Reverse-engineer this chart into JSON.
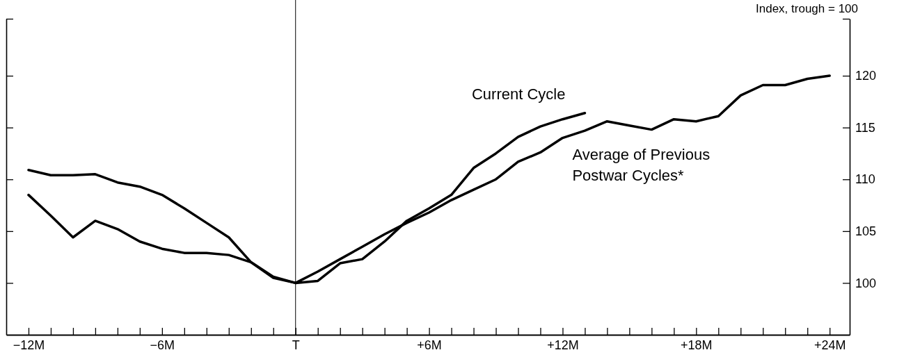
{
  "chart_data": {
    "type": "line",
    "ylabel": "Index, trough = 100",
    "xlim": [
      -13,
      24.9
    ],
    "ylim": [
      95,
      125.5
    ],
    "xticks": [
      {
        "value": -12,
        "label": "−12M"
      },
      {
        "value": -11,
        "label": null
      },
      {
        "value": -10,
        "label": null
      },
      {
        "value": -9,
        "label": null
      },
      {
        "value": -8,
        "label": null
      },
      {
        "value": -7,
        "label": null
      },
      {
        "value": -6,
        "label": "−6M"
      },
      {
        "value": -5,
        "label": null
      },
      {
        "value": -4,
        "label": null
      },
      {
        "value": -3,
        "label": null
      },
      {
        "value": -2,
        "label": null
      },
      {
        "value": -1,
        "label": null
      },
      {
        "value": 0,
        "label": "T"
      },
      {
        "value": 1,
        "label": null
      },
      {
        "value": 2,
        "label": null
      },
      {
        "value": 3,
        "label": null
      },
      {
        "value": 4,
        "label": null
      },
      {
        "value": 5,
        "label": null
      },
      {
        "value": 6,
        "label": "+6M"
      },
      {
        "value": 7,
        "label": null
      },
      {
        "value": 8,
        "label": null
      },
      {
        "value": 9,
        "label": null
      },
      {
        "value": 10,
        "label": null
      },
      {
        "value": 11,
        "label": null
      },
      {
        "value": 12,
        "label": "+12M"
      },
      {
        "value": 13,
        "label": null
      },
      {
        "value": 14,
        "label": null
      },
      {
        "value": 15,
        "label": null
      },
      {
        "value": 16,
        "label": null
      },
      {
        "value": 17,
        "label": null
      },
      {
        "value": 18,
        "label": "+18M"
      },
      {
        "value": 19,
        "label": null
      },
      {
        "value": 20,
        "label": null
      },
      {
        "value": 21,
        "label": null
      },
      {
        "value": 22,
        "label": null
      },
      {
        "value": 23,
        "label": null
      },
      {
        "value": 24,
        "label": "+24M"
      }
    ],
    "yticks": [
      100,
      105,
      110,
      115,
      120,
      {
        "value": 125.5,
        "label": null
      }
    ],
    "ref_lines": [
      {
        "axis": "x",
        "value": 0,
        "color": "#000000"
      }
    ],
    "line_style": "solid",
    "marker": "none",
    "grid": false,
    "series": [
      {
        "name": "Current Cycle",
        "color": "#000000",
        "x": [
          -12,
          -11,
          -10,
          -9,
          -8,
          -7,
          -6,
          -5,
          -4,
          -3,
          -2,
          -1,
          0,
          1,
          2,
          3,
          4,
          5,
          6,
          7,
          8,
          9,
          10,
          11,
          12,
          13
        ],
        "values": [
          108.5,
          106.5,
          104.4,
          106.0,
          105.2,
          104.0,
          103.3,
          102.9,
          102.9,
          102.7,
          102.0,
          100.6,
          100,
          100.2,
          101.9,
          102.3,
          104.0,
          106.0,
          107.2,
          108.5,
          111.1,
          112.5,
          114.1,
          115.1,
          115.8,
          116.4
        ]
      },
      {
        "name": "Average of Previous Postwar Cycles*",
        "color": "#000000",
        "x": [
          -12,
          -11,
          -10,
          -9,
          -8,
          -7,
          -6,
          -5,
          -4,
          -3,
          -2,
          -1,
          0,
          1,
          2,
          3,
          4,
          5,
          6,
          7,
          8,
          9,
          10,
          11,
          12,
          13,
          14,
          15,
          16,
          17,
          18,
          19,
          20,
          21,
          22,
          23,
          24
        ],
        "values": [
          110.9,
          110.4,
          110.4,
          110.5,
          109.7,
          109.3,
          108.5,
          107.2,
          105.8,
          104.4,
          102.0,
          100.5,
          100,
          101.1,
          102.3,
          103.5,
          104.7,
          105.8,
          106.8,
          108.0,
          109.0,
          110.0,
          111.7,
          112.6,
          114.0,
          114.7,
          115.6,
          115.2,
          114.8,
          115.8,
          115.6,
          116.1,
          118.1,
          119.1,
          119.1,
          119.7,
          120.0
        ]
      }
    ]
  }
}
